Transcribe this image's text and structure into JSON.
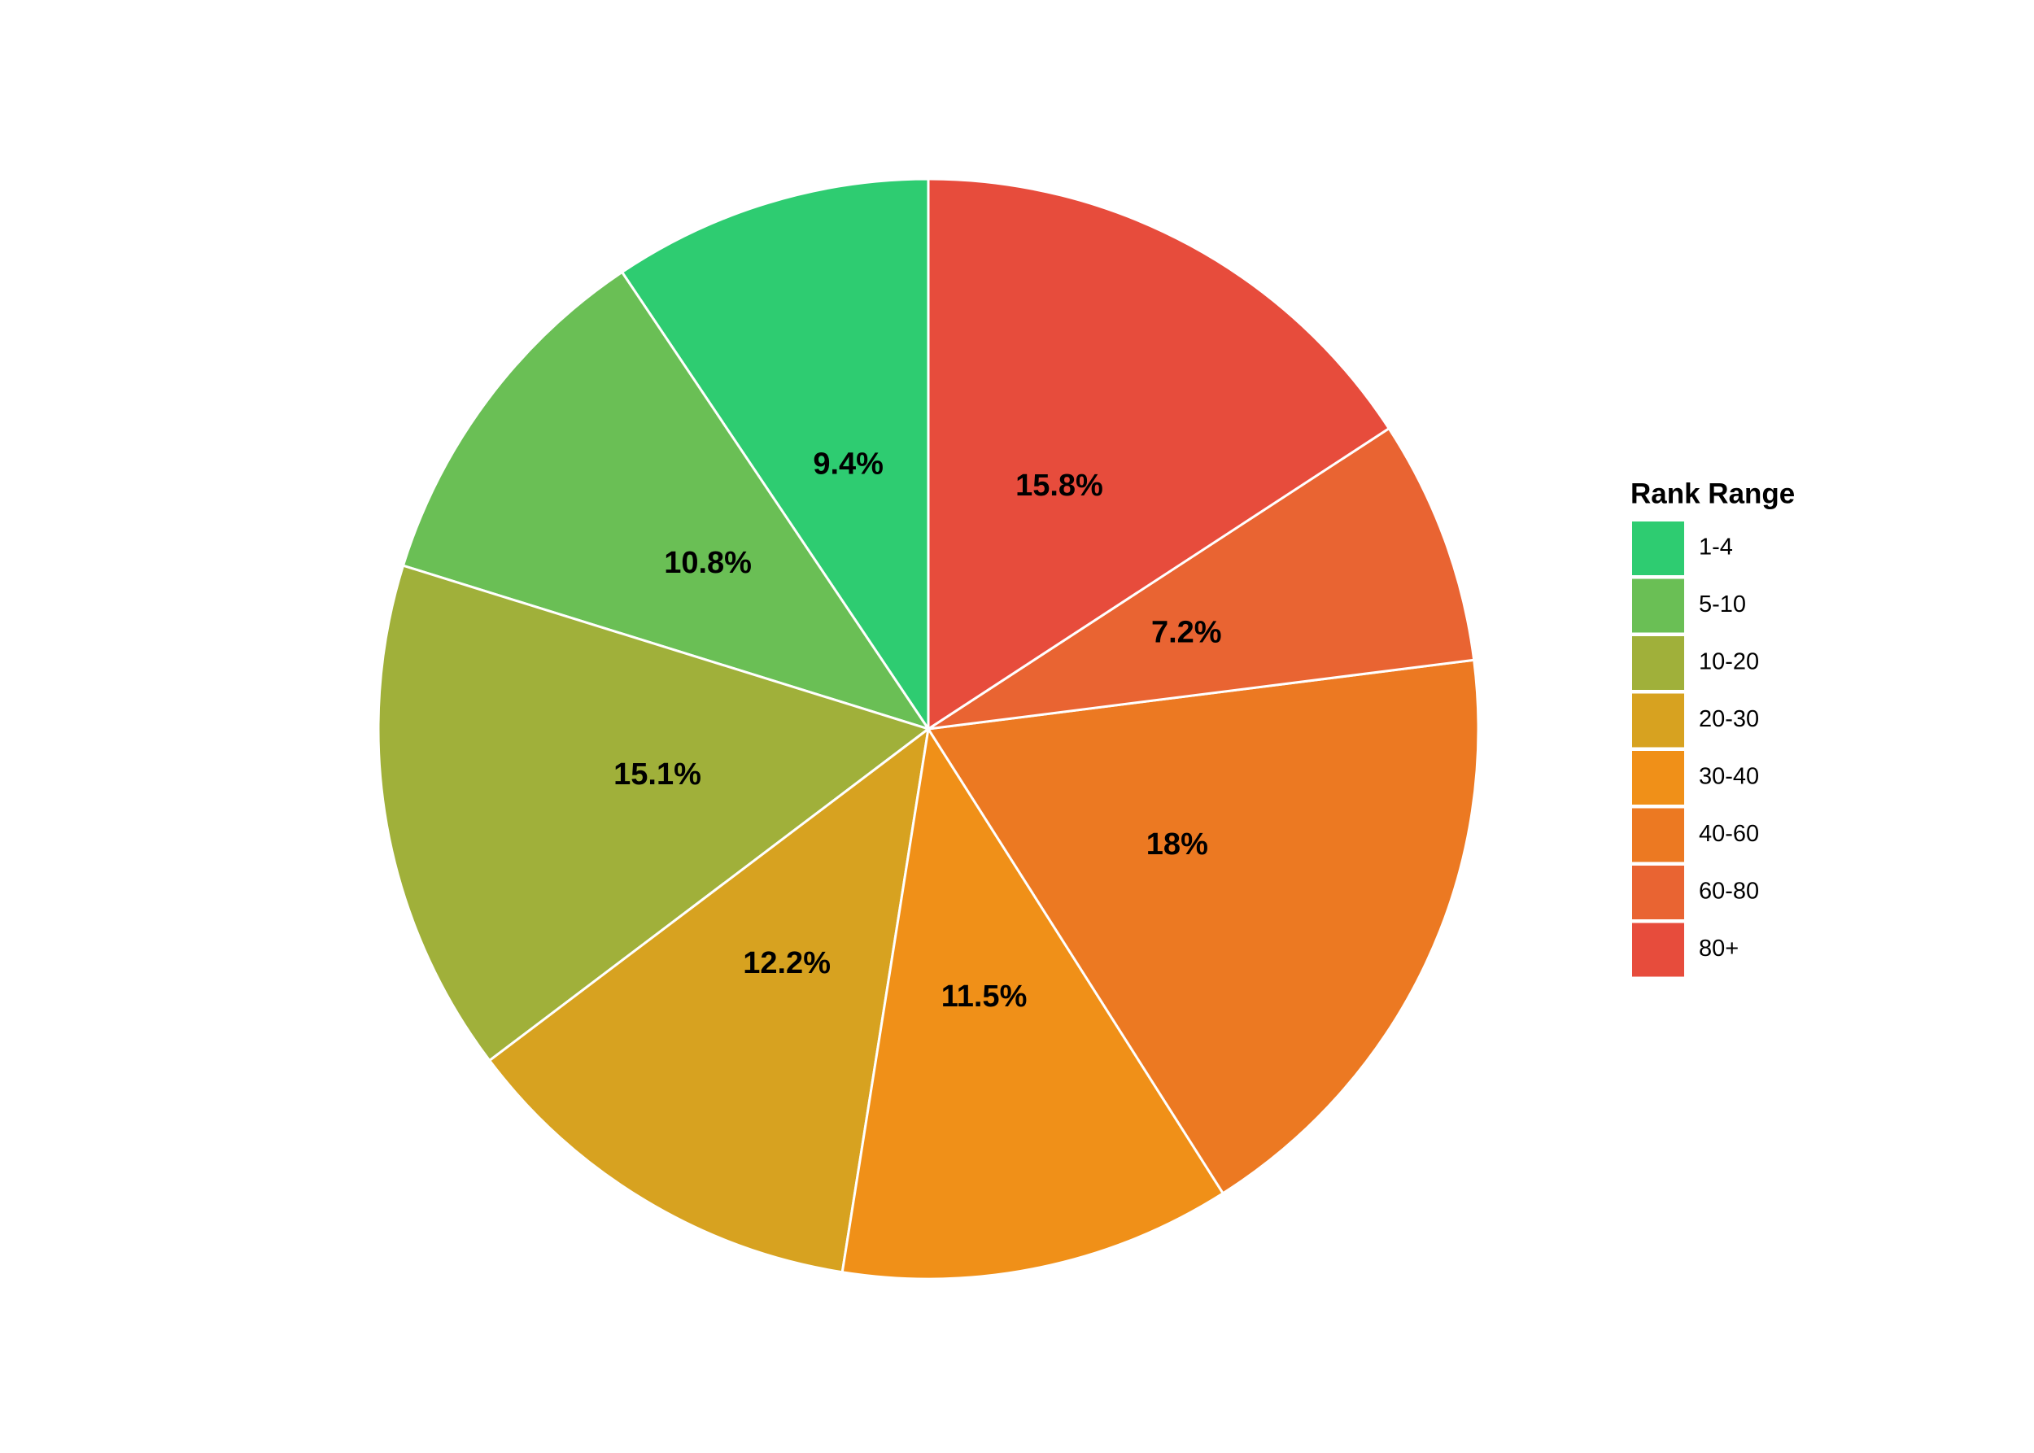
{
  "chart_data": {
    "type": "pie",
    "legend_title": "Rank Range",
    "legend": "right",
    "categories": [
      "1-4",
      "5-10",
      "10-20",
      "20-30",
      "30-40",
      "40-60",
      "60-80",
      "80+"
    ],
    "values": [
      9.4,
      10.8,
      15.1,
      12.2,
      11.5,
      18,
      7.2,
      15.8
    ],
    "value_labels": [
      "9.4%",
      "10.8%",
      "15.1%",
      "12.2%",
      "11.5%",
      "18%",
      "7.2%",
      "15.8%"
    ],
    "colors": [
      "#2ecc71",
      "#6abf55",
      "#a0b03a",
      "#d7a220",
      "#f09018",
      "#ec7922",
      "#e96432",
      "#e74c3c"
    ]
  }
}
